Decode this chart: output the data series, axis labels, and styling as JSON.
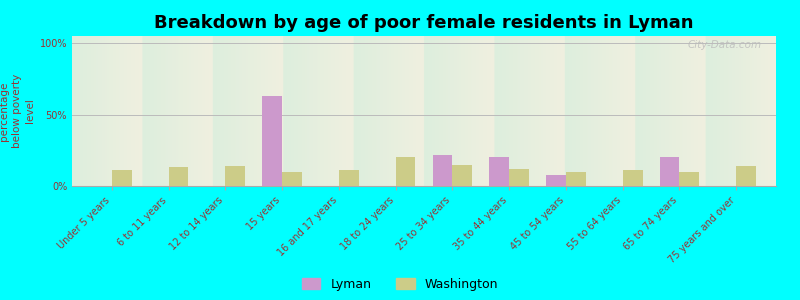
{
  "title": "Breakdown by age of poor female residents in Lyman",
  "ylabel": "percentage\nbelow poverty\nlevel",
  "categories": [
    "Under 5 years",
    "6 to 11 years",
    "12 to 14 years",
    "15 years",
    "16 and 17 years",
    "18 to 24 years",
    "25 to 34 years",
    "35 to 44 years",
    "45 to 54 years",
    "55 to 64 years",
    "65 to 74 years",
    "75 years and over"
  ],
  "lyman_values": [
    0,
    0,
    0,
    63,
    0,
    0,
    22,
    20,
    8,
    0,
    20,
    0
  ],
  "washington_values": [
    11,
    13,
    14,
    10,
    11,
    20,
    15,
    12,
    10,
    11,
    10,
    14
  ],
  "lyman_color": "#cc99cc",
  "washington_color": "#cccc88",
  "bg_color": "#00ffff",
  "plot_bg_top": "#ddeedd",
  "plot_bg_bottom": "#f0f0e0",
  "bar_width": 0.35,
  "ylim": [
    0,
    105
  ],
  "yticks": [
    0,
    50,
    100
  ],
  "ytick_labels": [
    "0%",
    "50%",
    "100%"
  ],
  "title_fontsize": 13,
  "axis_label_fontsize": 7.5,
  "tick_fontsize": 7,
  "legend_labels": [
    "Lyman",
    "Washington"
  ],
  "watermark": "City-Data.com"
}
